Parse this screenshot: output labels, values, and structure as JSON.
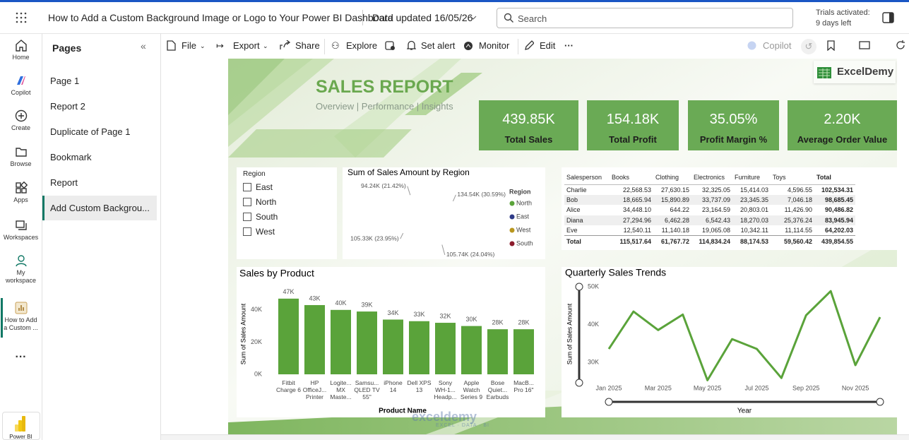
{
  "top_bar": {
    "report_title": "How to Add a Custom Background Image or Logo to Your Power BI Dashboard",
    "data_updated": "Data updated 16/05/26",
    "search_placeholder": "Search",
    "trial_status": "Trials activated:",
    "trial_days": "9 days left"
  },
  "nav": {
    "items": [
      "Home",
      "Copilot",
      "Create",
      "Browse",
      "Apps",
      "Workspaces",
      "My workspace",
      "How to Add a Custom ..."
    ],
    "product": "Power BI"
  },
  "pages_panel": {
    "title": "Pages",
    "pages": [
      "Page 1",
      "Report 2",
      "Duplicate of Page 1",
      "Bookmark",
      "Report",
      "Add Custom Backgrou..."
    ],
    "selected": 5
  },
  "toolbar": {
    "items": [
      "File",
      "Export",
      "Share",
      "Explore",
      "Set alert",
      "Monitor",
      "Edit"
    ],
    "copilot": "Copilot"
  },
  "report": {
    "title": "SALES REPORT",
    "subtitle": "Overview | Performance | Insights",
    "logo": "ExcelDemy",
    "watermark": "exceldemy",
    "watermark_tagline": "EXCEL · DATA · BI",
    "kpis": [
      {
        "value": "439.85K",
        "label": "Total Sales"
      },
      {
        "value": "154.18K",
        "label": "Total Profit"
      },
      {
        "value": "35.05%",
        "label": "Profit Margin %"
      },
      {
        "value": "2.20K",
        "label": "Average Order Value"
      }
    ],
    "slicer": {
      "title": "Region",
      "options": [
        "East",
        "North",
        "South",
        "West"
      ]
    },
    "matrix": {
      "headers": [
        "Salesperson",
        "Books",
        "Clothing",
        "Electronics",
        "Furniture",
        "Toys",
        "Total"
      ],
      "rows": [
        [
          "Charlie",
          "22,568.53",
          "27,630.15",
          "32,325.05",
          "15,414.03",
          "4,596.55",
          "102,534.31"
        ],
        [
          "Bob",
          "18,665.94",
          "15,890.89",
          "33,737.09",
          "23,345.35",
          "7,046.18",
          "98,685.45"
        ],
        [
          "Alice",
          "34,448.10",
          "644.22",
          "23,164.59",
          "20,803.01",
          "11,426.90",
          "90,486.82"
        ],
        [
          "Diana",
          "27,294.96",
          "6,462.28",
          "6,542.43",
          "18,270.03",
          "25,376.24",
          "83,945.94"
        ],
        [
          "Eve",
          "12,540.11",
          "11,140.18",
          "19,065.08",
          "10,342.11",
          "11,114.55",
          "64,202.03"
        ]
      ],
      "total": [
        "Total",
        "115,517.64",
        "61,767.72",
        "114,834.24",
        "88,174.53",
        "59,560.42",
        "439,854.55"
      ]
    }
  },
  "chart_data": [
    {
      "type": "pie",
      "title": "Sum of Sales Amount by Region",
      "legend_title": "Region",
      "categories": [
        "North",
        "East",
        "West",
        "South"
      ],
      "values": [
        134.54,
        105.74,
        105.33,
        94.24
      ],
      "value_labels": [
        "134.54K (30.59%)",
        "105.74K (24.04%)",
        "105.33K (23.95%)",
        "94.24K (21.42%)"
      ],
      "colors": [
        "#5aa33a",
        "#2e3a87",
        "#b8961e",
        "#8b1a2b"
      ]
    },
    {
      "type": "bar",
      "title": "Sales by Product",
      "categories": [
        "Fitbit Charge 6",
        "HP OfficeJ... Printer",
        "Logite... MX Maste...",
        "Samsu... QLED TV 55\"",
        "iPhone 14",
        "Dell XPS 13",
        "Sony WH-1... Headp...",
        "Apple Watch Series 9",
        "Bose Quiet... Earbuds",
        "MacB... Pro 16\""
      ],
      "values": [
        47000,
        43000,
        40000,
        39000,
        34000,
        33000,
        32000,
        30000,
        28000,
        28000
      ],
      "value_labels": [
        "47K",
        "43K",
        "40K",
        "39K",
        "34K",
        "33K",
        "32K",
        "30K",
        "28K",
        "28K"
      ],
      "color": "#5aa33a",
      "ylim": [
        0,
        50000
      ],
      "yticks": [
        {
          "value": 0,
          "label": "0K"
        },
        {
          "value": 20000,
          "label": "20K"
        },
        {
          "value": 40000,
          "label": "40K"
        }
      ],
      "x_label": "Product Name",
      "y_label": "Sum of Sales Amount"
    },
    {
      "type": "line",
      "title": "Quarterly Sales Trends",
      "categories": [
        "Jan 2025",
        null,
        "Mar 2025",
        null,
        "May 2025",
        null,
        "Jul 2025",
        null,
        "Sep 2025",
        null,
        "Nov 2025",
        null
      ],
      "values": [
        33600,
        43500,
        38600,
        42700,
        25300,
        36200,
        33600,
        25900,
        42500,
        48900,
        29300,
        42000
      ],
      "color": "#5aa33a",
      "ylim": [
        25000,
        51000
      ],
      "yticks": [
        {
          "value": 30000,
          "label": "30K"
        },
        {
          "value": 40000,
          "label": "40K"
        },
        {
          "value": 50000,
          "label": "50K"
        }
      ],
      "x_label": "Year",
      "y_label": "Sum of Sales Amount"
    }
  ]
}
